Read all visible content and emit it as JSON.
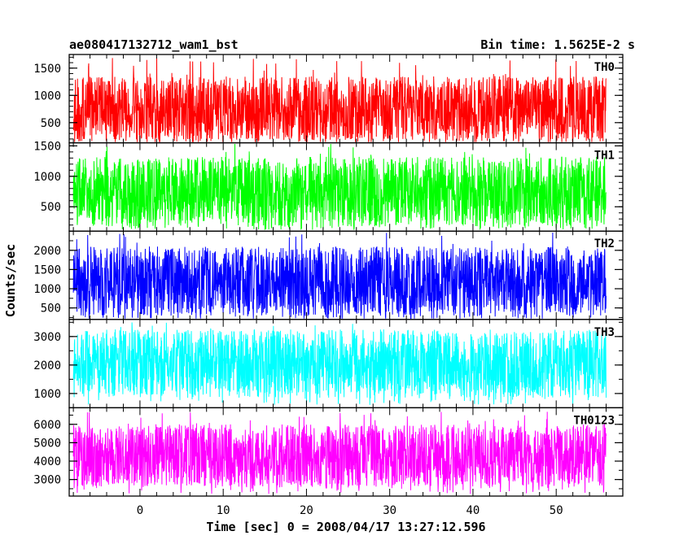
{
  "chart_data": {
    "type": "line",
    "title": "ae080417132712_wam1_bst",
    "subtitle": "Bin time: 1.5625E-2 s",
    "xlabel": "Time [sec] 0 = 2008/04/17 13:27:12.596",
    "ylabel": "Counts/sec",
    "xlim": [
      -8.5,
      58
    ],
    "xticks": [
      0,
      10,
      20,
      30,
      40,
      50
    ],
    "data_x_range": [
      -8,
      56
    ],
    "series": [
      {
        "name": "TH0",
        "color": "#ff0000",
        "ylim": [
          130,
          1750
        ],
        "yticks": [
          500,
          1000,
          1500
        ],
        "mean": 720,
        "spread_low": 160,
        "spread_high": 1350,
        "min": 120,
        "max": 1700
      },
      {
        "name": "TH1",
        "color": "#00ff00",
        "ylim": [
          100,
          1550
        ],
        "yticks": [
          500,
          1000,
          1500
        ],
        "mean": 740,
        "spread_low": 180,
        "spread_high": 1320,
        "min": 120,
        "max": 1540
      },
      {
        "name": "TH2",
        "color": "#0000ff",
        "ylim": [
          200,
          2500
        ],
        "yticks": [
          500,
          1000,
          1500,
          2000
        ],
        "mean": 1150,
        "spread_low": 300,
        "spread_high": 2100,
        "min": 200,
        "max": 2500
      },
      {
        "name": "TH3",
        "color": "#00ffff",
        "ylim": [
          500,
          3600
        ],
        "yticks": [
          1000,
          2000,
          3000
        ],
        "mean": 2000,
        "spread_low": 850,
        "spread_high": 3250,
        "min": 600,
        "max": 3500
      },
      {
        "name": "TH0123",
        "color": "#ff00ff",
        "ylim": [
          2100,
          6900
        ],
        "yticks": [
          3000,
          4000,
          5000,
          6000
        ],
        "mean": 4300,
        "spread_low": 2600,
        "spread_high": 6000,
        "min": 2200,
        "max": 6700
      }
    ]
  }
}
